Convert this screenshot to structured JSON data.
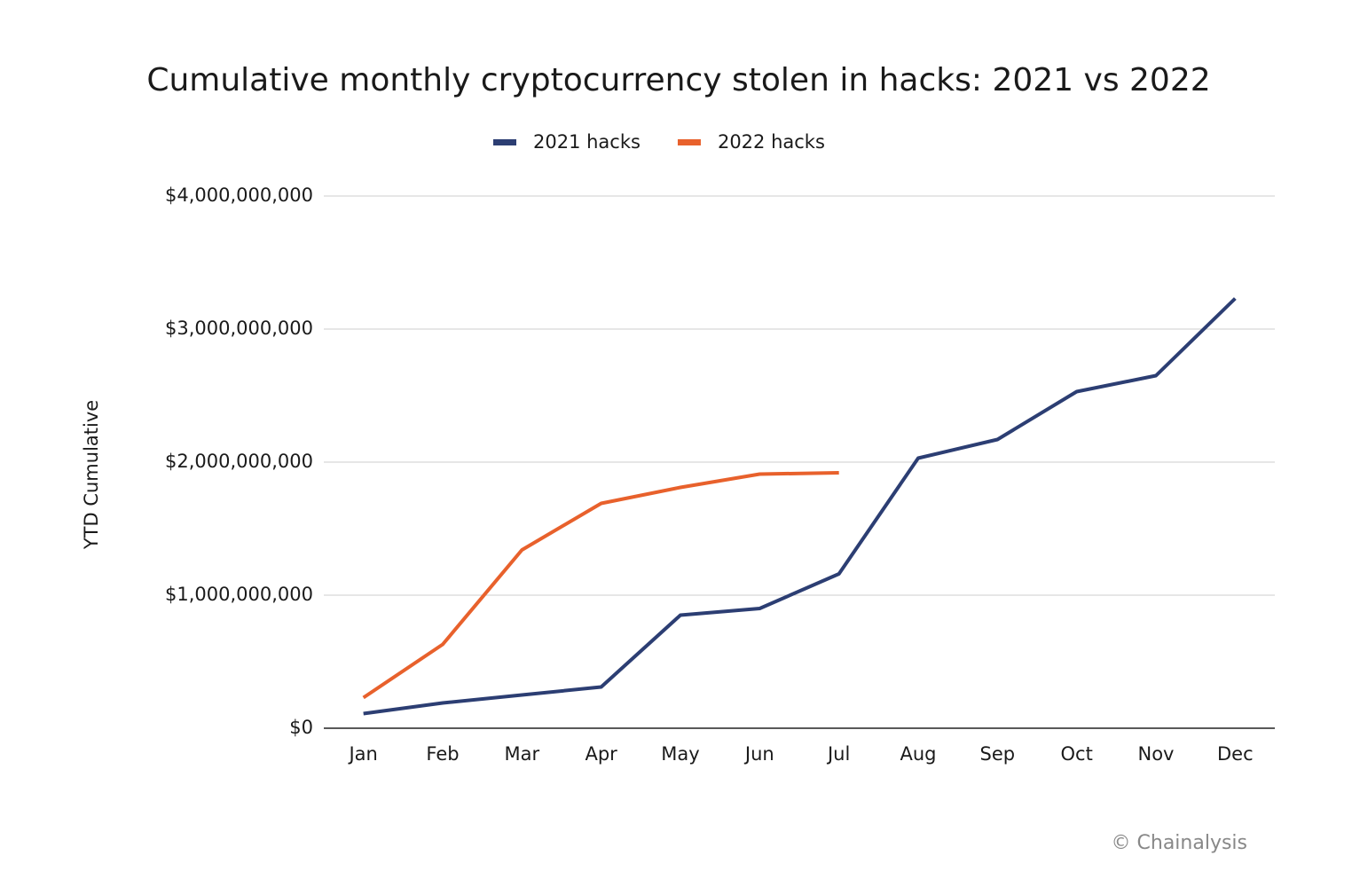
{
  "chart_data": {
    "type": "line",
    "title": "Cumulative monthly cryptocurrency stolen in hacks: 2021 vs 2022",
    "y_label": "YTD Cumulative",
    "source": "© Chainalysis",
    "categories": [
      "Jan",
      "Feb",
      "Mar",
      "Apr",
      "May",
      "Jun",
      "Jul",
      "Aug",
      "Sep",
      "Oct",
      "Nov",
      "Dec"
    ],
    "series": [
      {
        "name": "2021 hacks",
        "color": "#2c3e73",
        "values": [
          110000000,
          190000000,
          250000000,
          310000000,
          850000000,
          900000000,
          1160000000,
          2030000000,
          2170000000,
          2530000000,
          2650000000,
          3230000000
        ]
      },
      {
        "name": "2022 hacks",
        "color": "#e8612c",
        "values": [
          230000000,
          630000000,
          1340000000,
          1690000000,
          1810000000,
          1910000000,
          1920000000,
          null,
          null,
          null,
          null,
          null
        ]
      }
    ],
    "ylim": [
      0,
      4000000000
    ],
    "yticks": [
      {
        "value": 0,
        "label": "$0"
      },
      {
        "value": 1000000000,
        "label": "$1,000,000,000"
      },
      {
        "value": 2000000000,
        "label": "$2,000,000,000"
      },
      {
        "value": 3000000000,
        "label": "$3,000,000,000"
      },
      {
        "value": 4000000000,
        "label": "$4,000,000,000"
      }
    ],
    "grid": true,
    "legend": "top"
  }
}
